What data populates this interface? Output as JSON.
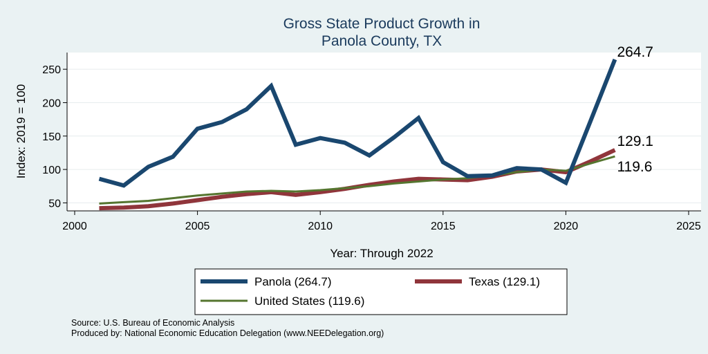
{
  "chart_data": {
    "type": "line",
    "title": [
      "Gross State Product Growth in",
      "Panola County, TX"
    ],
    "xlabel": "Year: Through 2022",
    "ylabel": "Index: 2019 = 100",
    "xlim": [
      2000,
      2025
    ],
    "ylim": [
      38,
      275
    ],
    "x_ticks": [
      2000,
      2005,
      2010,
      2015,
      2020,
      2025
    ],
    "y_ticks": [
      50,
      100,
      150,
      200,
      250
    ],
    "x": [
      2001,
      2002,
      2003,
      2004,
      2005,
      2006,
      2007,
      2008,
      2009,
      2010,
      2011,
      2012,
      2013,
      2014,
      2015,
      2016,
      2017,
      2018,
      2019,
      2020,
      2021,
      2022
    ],
    "series": [
      {
        "name": "Panola",
        "legend_label": "Panola  (264.7)",
        "end_label": "264.7",
        "color": "#1a476f",
        "values": [
          86,
          76,
          104,
          119,
          161,
          171,
          190,
          225,
          137,
          147,
          140,
          121,
          148,
          177,
          111,
          90,
          91,
          102,
          100,
          80,
          172,
          264.7
        ]
      },
      {
        "name": "Texas",
        "legend_label": "Texas (129.1)",
        "end_label": "129.1",
        "color": "#90353b",
        "values": [
          42,
          43,
          45,
          49,
          54,
          59,
          63,
          66,
          62,
          66,
          71,
          77,
          82,
          86,
          85,
          84,
          89,
          97,
          100,
          96,
          112,
          129.1
        ]
      },
      {
        "name": "United States",
        "legend_label": "United States (119.6)",
        "end_label": "119.6",
        "color": "#55752f",
        "values": [
          49,
          51,
          53,
          57,
          61,
          64,
          67,
          68,
          67,
          69,
          72,
          75,
          79,
          82,
          85,
          87,
          91,
          96,
          100,
          98,
          109,
          119.6
        ]
      }
    ],
    "grid": true,
    "legend_position": "bottom"
  },
  "footer": {
    "source": "Source: U.S. Bureau of Economic Analysis",
    "produced_by": "Produced by: National Economic Education Delegation (www.NEEDelegation.org)"
  }
}
